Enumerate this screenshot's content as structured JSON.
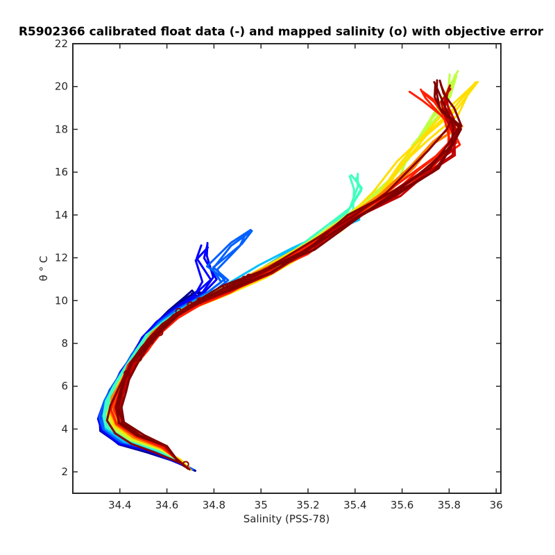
{
  "chart_data": {
    "type": "line",
    "title": "R5902366 calibrated float data (-) and mapped salinity (o) with objective error",
    "xlabel": "Salinity (PSS-78)",
    "ylabel": "θ ° C",
    "xlim": [
      34.2,
      36.02
    ],
    "ylim": [
      1,
      22
    ],
    "xticks": [
      "34.4",
      "34.6",
      "34.8",
      "35",
      "35.2",
      "35.4",
      "35.6",
      "35.8",
      "36"
    ],
    "yticks": [
      "2",
      "4",
      "6",
      "8",
      "10",
      "12",
      "14",
      "16",
      "18",
      "20",
      "22"
    ],
    "grid": false,
    "colormap": "jet (profile number: early=blue, late=dark red)",
    "mean_profile": [
      {
        "s": 34.7,
        "t": 2.1
      },
      {
        "s": 34.66,
        "t": 2.4
      },
      {
        "s": 34.55,
        "t": 2.9
      },
      {
        "s": 34.45,
        "t": 3.3
      },
      {
        "s": 34.38,
        "t": 3.8
      },
      {
        "s": 34.345,
        "t": 4.4
      },
      {
        "s": 34.36,
        "t": 5.1
      },
      {
        "s": 34.39,
        "t": 5.8
      },
      {
        "s": 34.43,
        "t": 6.7
      },
      {
        "s": 34.47,
        "t": 7.4
      },
      {
        "s": 34.52,
        "t": 8.2
      },
      {
        "s": 34.58,
        "t": 8.9
      },
      {
        "s": 34.66,
        "t": 9.5
      },
      {
        "s": 34.76,
        "t": 10.0
      },
      {
        "s": 34.86,
        "t": 10.6
      },
      {
        "s": 34.98,
        "t": 11.2
      },
      {
        "s": 35.1,
        "t": 12.0
      },
      {
        "s": 35.25,
        "t": 13.0
      },
      {
        "s": 35.4,
        "t": 14.0
      },
      {
        "s": 35.53,
        "t": 15.0
      },
      {
        "s": 35.62,
        "t": 16.0
      },
      {
        "s": 35.71,
        "t": 17.0
      },
      {
        "s": 35.79,
        "t": 18.0
      },
      {
        "s": 35.81,
        "t": 18.5
      }
    ],
    "series": [
      {
        "color": "#00008f",
        "values": [
          [
            34.72,
            2.05
          ],
          [
            34.66,
            2.4
          ],
          [
            34.52,
            2.9
          ],
          [
            34.4,
            3.3
          ],
          [
            34.33,
            3.9
          ],
          [
            34.32,
            4.4
          ],
          [
            34.34,
            5.1
          ],
          [
            34.37,
            5.8
          ],
          [
            34.42,
            6.7
          ],
          [
            34.46,
            7.4
          ],
          [
            34.5,
            8.2
          ],
          [
            34.56,
            8.9
          ],
          [
            34.62,
            9.5
          ],
          [
            34.7,
            10.1
          ],
          [
            34.72,
            10.4
          ],
          [
            34.76,
            10.1
          ],
          [
            34.78,
            10.3
          ]
        ]
      },
      {
        "color": "#0000ff",
        "values": [
          [
            34.71,
            2.1
          ],
          [
            34.65,
            2.4
          ],
          [
            34.53,
            2.95
          ],
          [
            34.41,
            3.35
          ],
          [
            34.335,
            3.95
          ],
          [
            34.325,
            4.5
          ],
          [
            34.345,
            5.2
          ],
          [
            34.38,
            5.9
          ],
          [
            34.42,
            6.7
          ],
          [
            34.47,
            7.5
          ],
          [
            34.51,
            8.3
          ],
          [
            34.57,
            9.0
          ],
          [
            34.64,
            9.6
          ],
          [
            34.74,
            10.2
          ],
          [
            34.78,
            11.0
          ],
          [
            34.76,
            12.0
          ],
          [
            34.78,
            12.6
          ]
        ]
      },
      {
        "color": "#0060ff",
        "values": [
          [
            34.71,
            2.1
          ],
          [
            34.65,
            2.45
          ],
          [
            34.54,
            3.0
          ],
          [
            34.42,
            3.4
          ],
          [
            34.34,
            4.0
          ],
          [
            34.33,
            4.55
          ],
          [
            34.35,
            5.3
          ],
          [
            34.38,
            6.0
          ],
          [
            34.43,
            6.8
          ],
          [
            34.47,
            7.5
          ],
          [
            34.52,
            8.3
          ],
          [
            34.58,
            9.0
          ],
          [
            34.66,
            9.6
          ],
          [
            34.78,
            10.3
          ],
          [
            34.86,
            10.9
          ],
          [
            34.8,
            11.5
          ],
          [
            34.9,
            12.6
          ],
          [
            34.95,
            13.2
          ]
        ]
      },
      {
        "color": "#00bfff",
        "values": [
          [
            34.7,
            2.1
          ],
          [
            34.65,
            2.5
          ],
          [
            34.55,
            3.0
          ],
          [
            34.43,
            3.4
          ],
          [
            34.35,
            4.0
          ],
          [
            34.34,
            4.6
          ],
          [
            34.355,
            5.3
          ],
          [
            34.39,
            6.0
          ],
          [
            34.43,
            6.8
          ],
          [
            34.48,
            7.5
          ],
          [
            34.52,
            8.3
          ],
          [
            34.59,
            9.0
          ],
          [
            34.67,
            9.6
          ],
          [
            34.78,
            10.2
          ],
          [
            34.9,
            10.8
          ],
          [
            35.02,
            11.6
          ],
          [
            35.15,
            12.4
          ],
          [
            35.28,
            13.2
          ],
          [
            35.4,
            13.8
          ]
        ]
      },
      {
        "color": "#40ffbf",
        "values": [
          [
            34.7,
            2.1
          ],
          [
            34.66,
            2.5
          ],
          [
            34.56,
            3.0
          ],
          [
            34.44,
            3.5
          ],
          [
            34.36,
            4.1
          ],
          [
            34.345,
            4.6
          ],
          [
            34.36,
            5.3
          ],
          [
            34.39,
            6.0
          ],
          [
            34.44,
            6.9
          ],
          [
            34.48,
            7.6
          ],
          [
            34.53,
            8.4
          ],
          [
            34.6,
            9.0
          ],
          [
            34.68,
            9.6
          ],
          [
            34.8,
            10.2
          ],
          [
            34.95,
            11.0
          ],
          [
            35.1,
            12.0
          ],
          [
            35.25,
            13.0
          ],
          [
            35.38,
            14.2
          ],
          [
            35.42,
            15.2
          ],
          [
            35.41,
            15.8
          ]
        ]
      },
      {
        "color": "#bfff40",
        "values": [
          [
            34.7,
            2.1
          ],
          [
            34.66,
            2.5
          ],
          [
            34.57,
            3.05
          ],
          [
            34.45,
            3.5
          ],
          [
            34.37,
            4.1
          ],
          [
            34.35,
            4.7
          ],
          [
            34.37,
            5.4
          ],
          [
            34.4,
            6.1
          ],
          [
            34.44,
            6.9
          ],
          [
            34.49,
            7.6
          ],
          [
            34.54,
            8.4
          ],
          [
            34.61,
            9.1
          ],
          [
            34.69,
            9.7
          ],
          [
            34.81,
            10.3
          ],
          [
            34.97,
            11.1
          ],
          [
            35.12,
            12.1
          ],
          [
            35.28,
            13.2
          ],
          [
            35.45,
            14.6
          ],
          [
            35.57,
            15.8
          ],
          [
            35.66,
            17.3
          ],
          [
            35.74,
            18.6
          ],
          [
            35.79,
            19.6
          ],
          [
            35.81,
            20.6
          ]
        ]
      },
      {
        "color": "#ffdf00",
        "values": [
          [
            34.7,
            2.1
          ],
          [
            34.66,
            2.55
          ],
          [
            34.58,
            3.05
          ],
          [
            34.46,
            3.55
          ],
          [
            34.38,
            4.15
          ],
          [
            34.36,
            4.7
          ],
          [
            34.375,
            5.4
          ],
          [
            34.4,
            6.1
          ],
          [
            34.45,
            6.9
          ],
          [
            34.49,
            7.6
          ],
          [
            34.55,
            8.4
          ],
          [
            34.62,
            9.1
          ],
          [
            34.7,
            9.7
          ],
          [
            34.83,
            10.4
          ],
          [
            34.99,
            11.2
          ],
          [
            35.15,
            12.2
          ],
          [
            35.32,
            13.4
          ],
          [
            35.5,
            15.0
          ],
          [
            35.6,
            16.4
          ],
          [
            35.68,
            17.6
          ],
          [
            35.8,
            18.8
          ],
          [
            35.9,
            20.1
          ]
        ]
      },
      {
        "color": "#ff8000",
        "values": [
          [
            34.69,
            2.15
          ],
          [
            34.65,
            2.55
          ],
          [
            34.58,
            3.1
          ],
          [
            34.47,
            3.6
          ],
          [
            34.39,
            4.2
          ],
          [
            34.37,
            4.8
          ],
          [
            34.38,
            5.5
          ],
          [
            34.41,
            6.2
          ],
          [
            34.45,
            7.0
          ],
          [
            34.5,
            7.7
          ],
          [
            34.55,
            8.5
          ],
          [
            34.62,
            9.2
          ],
          [
            34.71,
            9.8
          ],
          [
            34.84,
            10.5
          ],
          [
            35.0,
            11.3
          ],
          [
            35.17,
            12.3
          ],
          [
            35.35,
            13.6
          ],
          [
            35.52,
            15.0
          ],
          [
            35.65,
            16.3
          ],
          [
            35.75,
            17.4
          ],
          [
            35.84,
            18.2
          ]
        ]
      },
      {
        "color": "#ff2000",
        "values": [
          [
            34.69,
            2.15
          ],
          [
            34.64,
            2.6
          ],
          [
            34.58,
            3.15
          ],
          [
            34.48,
            3.65
          ],
          [
            34.4,
            4.25
          ],
          [
            34.38,
            4.9
          ],
          [
            34.39,
            5.6
          ],
          [
            34.42,
            6.2
          ],
          [
            34.45,
            7.0
          ],
          [
            34.5,
            7.7
          ],
          [
            34.56,
            8.5
          ],
          [
            34.63,
            9.2
          ],
          [
            34.72,
            9.8
          ],
          [
            34.85,
            10.5
          ],
          [
            35.01,
            11.3
          ],
          [
            35.18,
            12.3
          ],
          [
            35.37,
            13.7
          ],
          [
            35.55,
            15.0
          ],
          [
            35.68,
            16.0
          ],
          [
            35.77,
            16.8
          ],
          [
            35.82,
            17.4
          ],
          [
            35.79,
            18.4
          ],
          [
            35.7,
            19.4
          ],
          [
            35.66,
            19.8
          ]
        ]
      },
      {
        "color": "#bf0000",
        "values": [
          [
            34.69,
            2.15
          ],
          [
            34.64,
            2.6
          ],
          [
            34.59,
            3.2
          ],
          [
            34.48,
            3.7
          ],
          [
            34.4,
            4.3
          ],
          [
            34.39,
            5.0
          ],
          [
            34.4,
            5.6
          ],
          [
            34.42,
            6.3
          ],
          [
            34.46,
            7.1
          ],
          [
            34.5,
            7.8
          ],
          [
            34.56,
            8.6
          ],
          [
            34.63,
            9.3
          ],
          [
            34.72,
            9.9
          ],
          [
            34.86,
            10.6
          ],
          [
            35.02,
            11.4
          ],
          [
            35.19,
            12.3
          ],
          [
            35.38,
            13.8
          ],
          [
            35.56,
            15.0
          ],
          [
            35.7,
            16.0
          ],
          [
            35.8,
            16.9
          ],
          [
            35.83,
            17.8
          ],
          [
            35.8,
            18.6
          ],
          [
            35.77,
            19.4
          ],
          [
            35.78,
            20.0
          ]
        ]
      },
      {
        "color": "#800000",
        "values": [
          [
            34.69,
            2.15
          ],
          [
            34.64,
            2.6
          ],
          [
            34.6,
            3.2
          ],
          [
            34.49,
            3.7
          ],
          [
            34.41,
            4.3
          ],
          [
            34.4,
            5.0
          ],
          [
            34.41,
            5.7
          ],
          [
            34.43,
            6.3
          ],
          [
            34.46,
            7.1
          ],
          [
            34.51,
            7.8
          ],
          [
            34.57,
            8.6
          ],
          [
            34.64,
            9.3
          ],
          [
            34.73,
            9.9
          ],
          [
            34.87,
            10.6
          ],
          [
            35.03,
            11.4
          ],
          [
            35.2,
            12.3
          ],
          [
            35.4,
            13.9
          ],
          [
            35.58,
            15.0
          ],
          [
            35.72,
            16.1
          ],
          [
            35.82,
            17.2
          ],
          [
            35.84,
            18.1
          ],
          [
            35.79,
            18.9
          ],
          [
            35.74,
            19.6
          ],
          [
            35.75,
            20.2
          ]
        ]
      }
    ],
    "mapped_points": [
      {
        "s": 34.68,
        "t": 2.35
      },
      {
        "s": 34.43,
        "t": 6.6
      },
      {
        "s": 34.48,
        "t": 7.3
      },
      {
        "s": 34.53,
        "t": 8.1
      },
      {
        "s": 34.57,
        "t": 8.5
      },
      {
        "s": 34.65,
        "t": 9.5
      },
      {
        "s": 34.7,
        "t": 9.8
      },
      {
        "s": 34.74,
        "t": 10.0
      },
      {
        "s": 34.85,
        "t": 10.6
      },
      {
        "s": 34.93,
        "t": 11.0
      },
      {
        "s": 34.95,
        "t": 11.1
      }
    ]
  }
}
